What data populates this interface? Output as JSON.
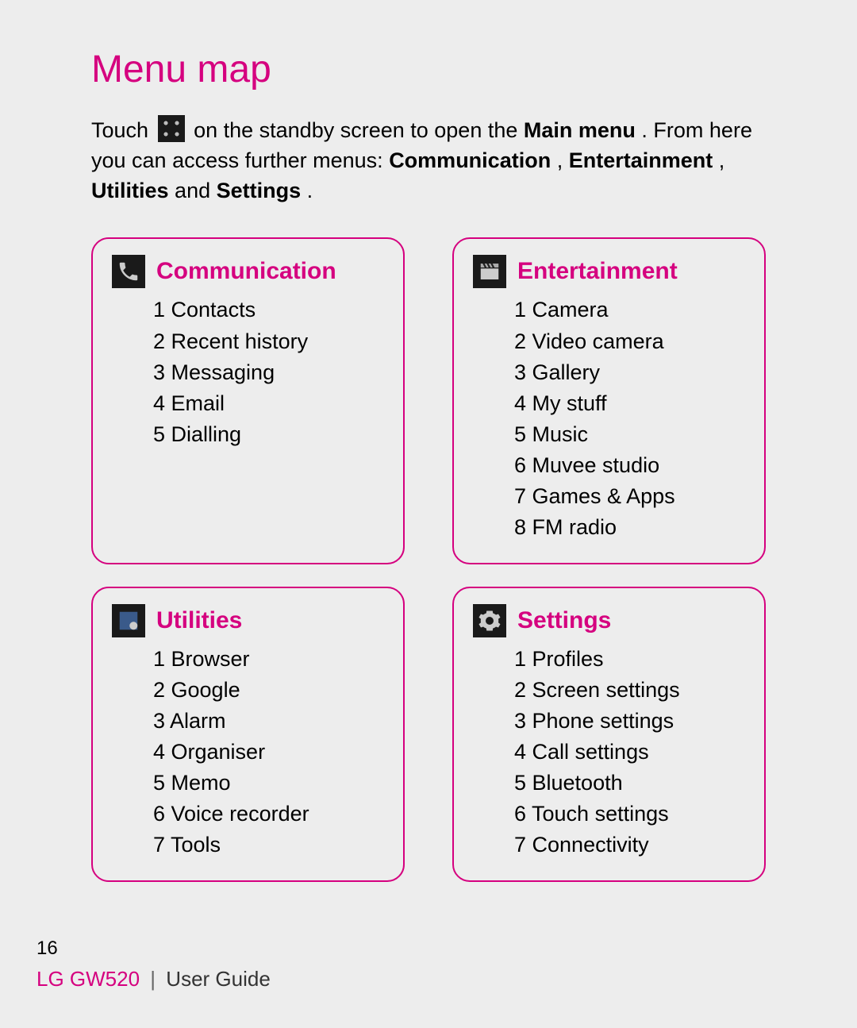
{
  "title": "Menu map",
  "intro": {
    "pre": "Touch ",
    "post_icon": " on the standby screen to open the ",
    "main_menu": "Main menu",
    "after_main_menu": ". From here you can access further menus: ",
    "m1": "Communication",
    "c1": ", ",
    "m2": "Entertainment",
    "c2": ", ",
    "m3": "Utilities",
    "and": " and ",
    "m4": "Settings",
    "end": "."
  },
  "colors": {
    "accent": "#d5007f",
    "page_bg": "#ededed",
    "icon_bg": "#1a1a1a",
    "text": "#000000"
  },
  "cards": {
    "communication": {
      "title": "Communication",
      "items": [
        "1 Contacts",
        "2 Recent history",
        "3 Messaging",
        "4 Email",
        "5 Dialling"
      ]
    },
    "entertainment": {
      "title": "Entertainment",
      "items": [
        "1 Camera",
        "2 Video camera",
        "3 Gallery",
        "4 My stuff",
        "5 Music",
        "6 Muvee studio",
        "7 Games & Apps",
        "8 FM radio"
      ]
    },
    "utilities": {
      "title": "Utilities",
      "items": [
        "1 Browser",
        "2 Google",
        "3 Alarm",
        "4 Organiser",
        "5 Memo",
        "6 Voice recorder",
        "7 Tools"
      ]
    },
    "settings": {
      "title": "Settings",
      "items": [
        "1 Profiles",
        "2 Screen settings",
        "3 Phone settings",
        "4 Call settings",
        "5 Bluetooth",
        "6 Touch settings",
        "7 Connectivity"
      ]
    }
  },
  "page_number": "16",
  "footer": {
    "model": "LG GW520",
    "separator": "|",
    "guide": "User Guide"
  }
}
